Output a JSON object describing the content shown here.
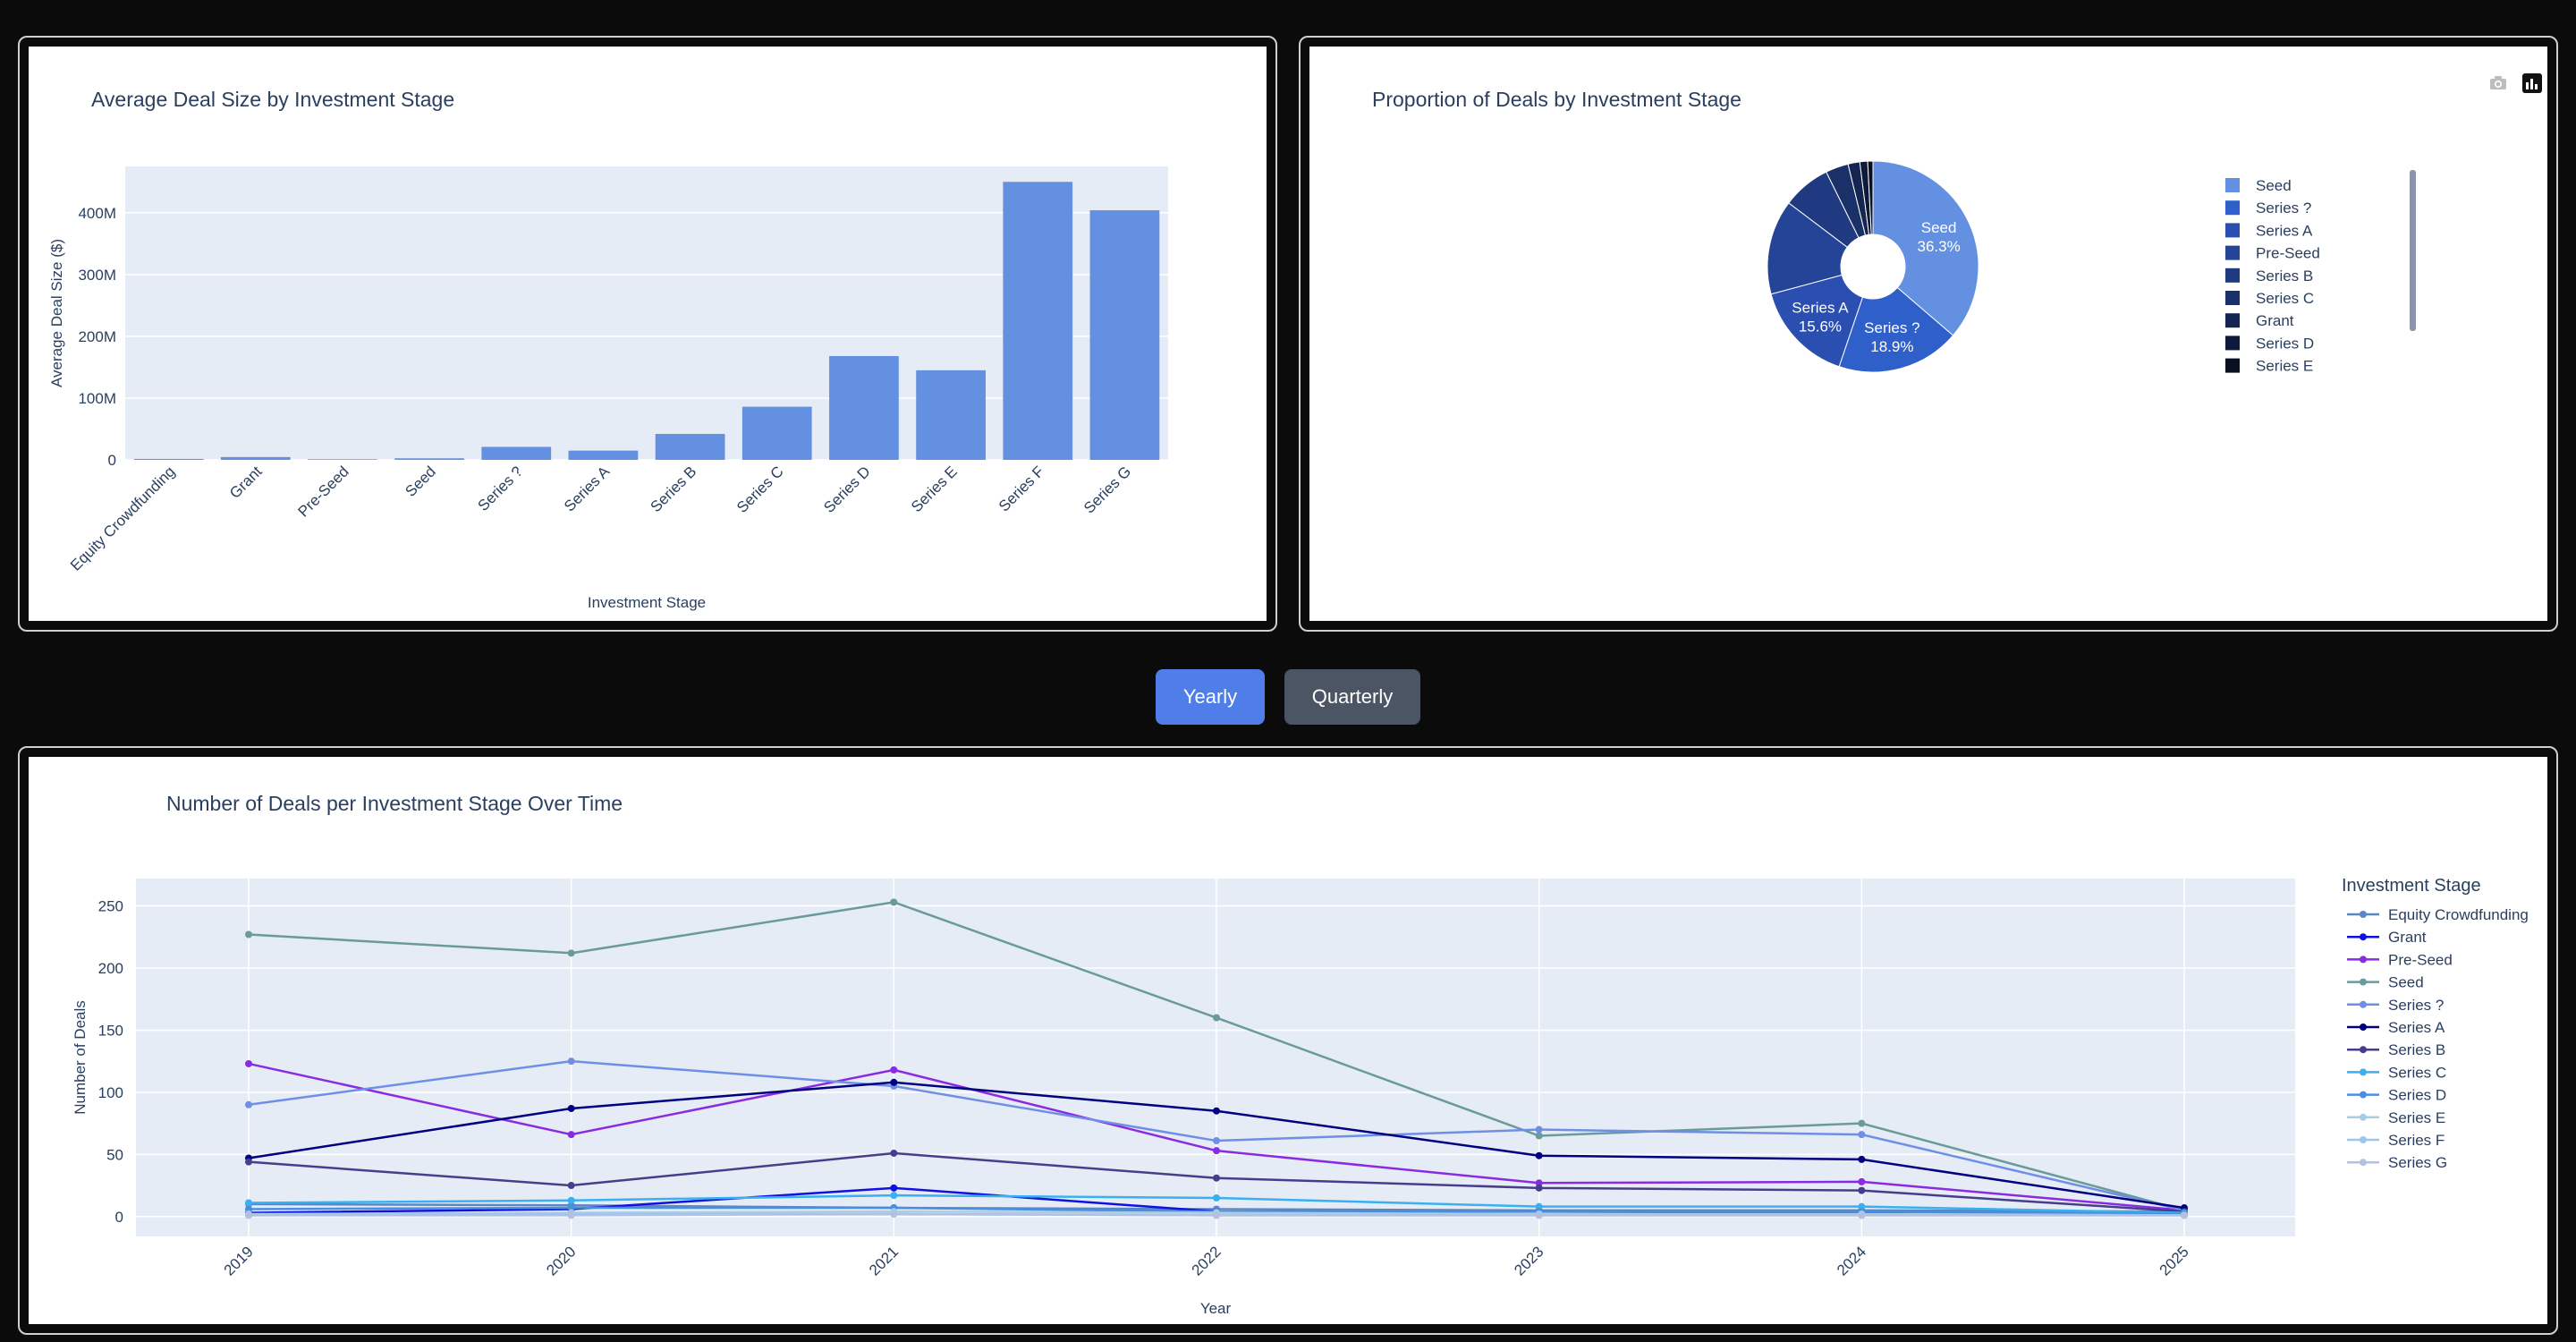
{
  "controls": {
    "yearly_label": "Yearly",
    "quarterly_label": "Quarterly",
    "active": "Yearly",
    "active_color": "#4f7ee8",
    "inactive_color": "#4b5563"
  },
  "modebar": {
    "icons": [
      "camera-icon",
      "plotly-logo-icon"
    ]
  },
  "chart_data": [
    {
      "type": "bar",
      "title": "Average Deal Size by Investment Stage",
      "xlabel": "Investment Stage",
      "ylabel": "Average Deal Size ($)",
      "categories": [
        "Equity Crowdfunding",
        "Grant",
        "Pre-Seed",
        "Seed",
        "Series ?",
        "Series A",
        "Series B",
        "Series C",
        "Series D",
        "Series E",
        "Series F",
        "Series G"
      ],
      "values": [
        1500000,
        4500000,
        1000000,
        2500000,
        21000000,
        15000000,
        42000000,
        86000000,
        168000000,
        145000000,
        450000000,
        404000000
      ],
      "ylim": [
        0,
        475000000
      ],
      "yticks": [
        0,
        100000000,
        200000000,
        300000000,
        400000000
      ],
      "ytick_labels": [
        "0",
        "100M",
        "200M",
        "300M",
        "400M"
      ],
      "bar_color": "#6390e0",
      "plot_bg": "#e5ecf6",
      "grid": true
    },
    {
      "type": "pie",
      "title": "Proportion of Deals by Investment Stage",
      "hole": true,
      "labels": [
        "Seed",
        "Series ?",
        "Series A",
        "Pre-Seed",
        "Series B",
        "Series C",
        "Grant",
        "Series D",
        "Series E"
      ],
      "values": [
        36.3,
        18.9,
        15.6,
        14.5,
        7.4,
        3.5,
        1.8,
        1.2,
        0.8
      ],
      "slice_text": [
        "Seed\n36.3%",
        "Series ?\n18.9%",
        "Series A\n15.6%",
        "",
        "",
        "",
        "",
        "",
        ""
      ],
      "colors": [
        "#6390e0",
        "#2f5fc9",
        "#2a4fb0",
        "#244498",
        "#1f3a80",
        "#1a3068",
        "#142552",
        "#0e1a3a",
        "#080f22"
      ],
      "legend_position": "right"
    },
    {
      "type": "line",
      "title": "Number of Deals per Investment Stage Over Time",
      "xlabel": "Year",
      "ylabel": "Number of Deals",
      "legend_title": "Investment Stage",
      "x": [
        "2019",
        "2020",
        "2021",
        "2022",
        "2023",
        "2024",
        "2025"
      ],
      "ylim": [
        -16,
        272
      ],
      "yticks": [
        0,
        50,
        100,
        150,
        200,
        250
      ],
      "series": [
        {
          "name": "Equity Crowdfunding",
          "color": "#5a86c6",
          "values": [
            10,
            9,
            7,
            6,
            5,
            5,
            4
          ]
        },
        {
          "name": "Grant",
          "color": "#1010e0",
          "values": [
            3,
            6,
            23,
            4,
            4,
            3,
            2
          ]
        },
        {
          "name": "Pre-Seed",
          "color": "#8a2be2",
          "values": [
            123,
            66,
            118,
            53,
            27,
            28,
            5
          ]
        },
        {
          "name": "Seed",
          "color": "#6a9a9a",
          "values": [
            227,
            212,
            253,
            160,
            65,
            75,
            5
          ]
        },
        {
          "name": "Series ?",
          "color": "#6f8fe6",
          "values": [
            90,
            125,
            105,
            61,
            70,
            66,
            5
          ]
        },
        {
          "name": "Series A",
          "color": "#000080",
          "values": [
            47,
            87,
            108,
            85,
            49,
            46,
            7
          ]
        },
        {
          "name": "Series B",
          "color": "#483d8b",
          "values": [
            44,
            25,
            51,
            31,
            23,
            21,
            4
          ]
        },
        {
          "name": "Series C",
          "color": "#3ab0f0",
          "values": [
            11,
            13,
            17,
            15,
            8,
            8,
            3
          ]
        },
        {
          "name": "Series D",
          "color": "#4a8ee0",
          "values": [
            6,
            7,
            7,
            4,
            4,
            4,
            2
          ]
        },
        {
          "name": "Series E",
          "color": "#a8cde4",
          "values": [
            2,
            3,
            4,
            3,
            2,
            2,
            1
          ]
        },
        {
          "name": "Series F",
          "color": "#9bc7ee",
          "values": [
            1,
            2,
            2,
            1,
            1,
            1,
            1
          ]
        },
        {
          "name": "Series G",
          "color": "#b3c0df",
          "values": [
            1,
            1,
            2,
            1,
            1,
            1,
            1
          ]
        }
      ],
      "plot_bg": "#e5ecf6",
      "grid": true,
      "legend_position": "right"
    }
  ]
}
